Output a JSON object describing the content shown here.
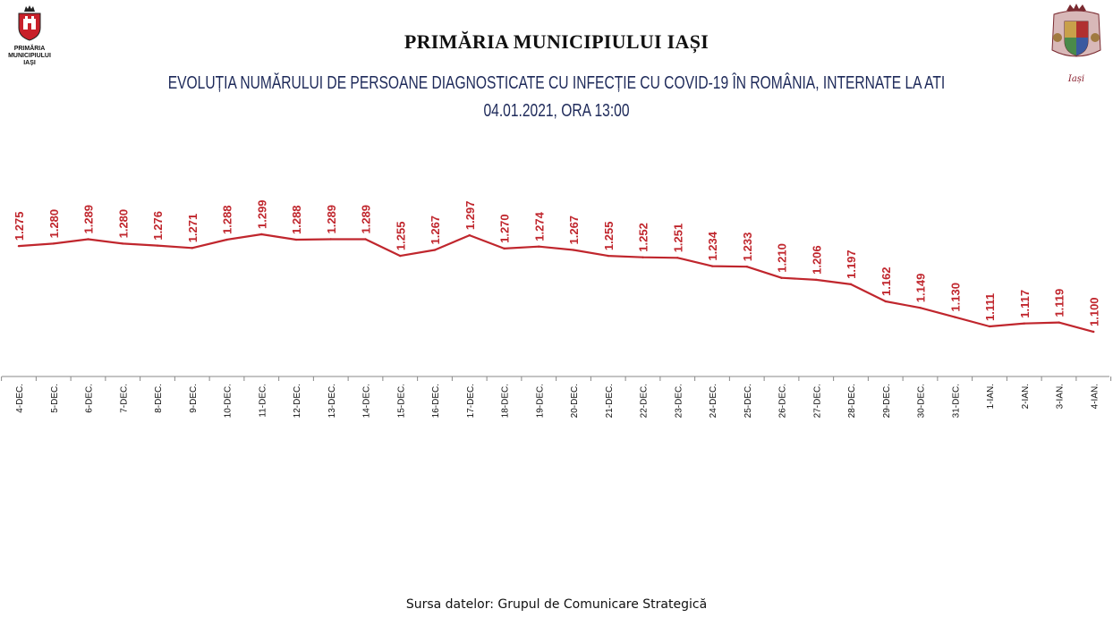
{
  "header": {
    "organization": "PRIMĂRIA MUNICIPIULUI IAȘI",
    "logo_left_lines": [
      "PRIMĂRIA",
      "MUNICIPIULUI",
      "IAȘI"
    ],
    "logo_right_motto": "Iași"
  },
  "colors": {
    "line": "#c0262d",
    "labels": "#c0262d",
    "axis": "#888888",
    "title": "#1e2a5a"
  },
  "chart_data": {
    "type": "line",
    "title": "EVOLUȚIA NUMĂRULUI DE PERSOANE DIAGNOSTICATE CU INFECȚIE CU COVID-19 ÎN ROMÂNIA, INTERNATE LA ATI",
    "subtitle": "04.01.2021, ORA 13:00",
    "categories": [
      "4-DEC.",
      "5-DEC.",
      "6-DEC.",
      "7-DEC.",
      "8-DEC.",
      "9-DEC.",
      "10-DEC.",
      "11-DEC.",
      "12-DEC.",
      "13-DEC.",
      "14-DEC.",
      "15-DEC.",
      "16-DEC.",
      "17-DEC.",
      "18-DEC.",
      "19-DEC.",
      "20-DEC.",
      "21-DEC.",
      "22-DEC.",
      "23-DEC.",
      "24-DEC.",
      "25-DEC.",
      "26-DEC.",
      "27-DEC.",
      "28-DEC.",
      "29-DEC.",
      "30-DEC.",
      "31-DEC.",
      "1-IAN.",
      "2-IAN.",
      "3-IAN.",
      "4-IAN."
    ],
    "values": [
      1275,
      1280,
      1289,
      1280,
      1276,
      1271,
      1288,
      1299,
      1288,
      1289,
      1289,
      1255,
      1267,
      1297,
      1270,
      1274,
      1267,
      1255,
      1252,
      1251,
      1234,
      1233,
      1210,
      1206,
      1197,
      1162,
      1149,
      1130,
      1111,
      1117,
      1119,
      1100
    ],
    "labels": [
      "1.275",
      "1.280",
      "1.289",
      "1.280",
      "1.276",
      "1.271",
      "1.288",
      "1.299",
      "1.288",
      "1.289",
      "1.289",
      "1.255",
      "1.267",
      "1.297",
      "1.270",
      "1.274",
      "1.267",
      "1.255",
      "1.252",
      "1.251",
      "1.234",
      "1.233",
      "1.210",
      "1.206",
      "1.197",
      "1.162",
      "1.149",
      "1.130",
      "1.111",
      "1.117",
      "1.119",
      "1.100"
    ],
    "xlabel": "",
    "ylabel": "",
    "grid": false,
    "legend": "none"
  },
  "footer": {
    "source": "Sursa datelor: Grupul de Comunicare Strategică"
  }
}
